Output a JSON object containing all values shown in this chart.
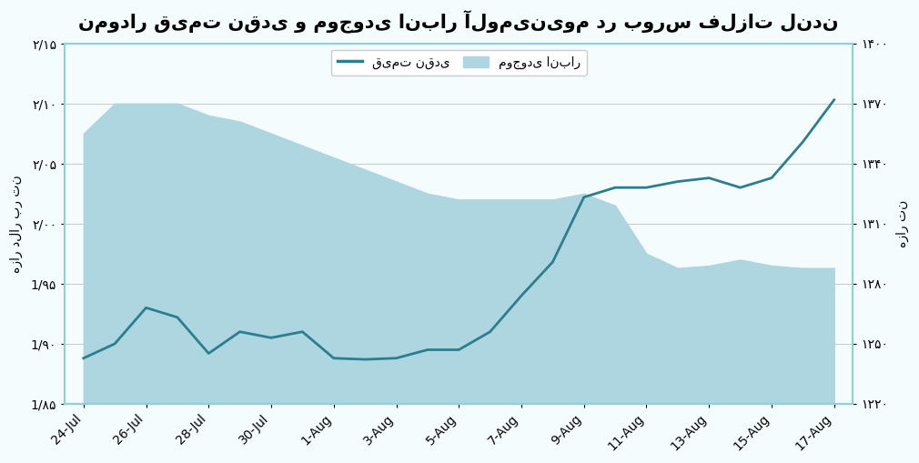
{
  "title": "نمودار قیمت نقدی و موجودی انبار آلومینیوم در بورس فلزات لندن",
  "x_labels": [
    "24-Jul",
    "26-Jul",
    "28-Jul",
    "30-Jul",
    "1-Aug",
    "3-Aug",
    "5-Aug",
    "7-Aug",
    "9-Aug",
    "11-Aug",
    "13-Aug",
    "15-Aug",
    "17-Aug"
  ],
  "price_x": [
    0,
    0.5,
    1.0,
    1.5,
    2.0,
    2.5,
    3.0,
    3.5,
    4.0,
    4.5,
    5.0,
    5.5,
    6.0,
    6.5,
    7.0,
    7.5,
    8.0,
    8.5,
    9.0,
    9.5,
    10.0,
    10.5,
    11.0,
    11.5,
    12.0
  ],
  "price_y": [
    1.888,
    1.9,
    1.93,
    1.922,
    1.892,
    1.91,
    1.905,
    1.91,
    1.888,
    1.887,
    1.888,
    1.895,
    1.895,
    1.91,
    1.94,
    1.968,
    2.022,
    2.03,
    2.03,
    2.035,
    2.038,
    2.03,
    2.038,
    2.068,
    2.103
  ],
  "inv_x": [
    0,
    0.5,
    1.0,
    1.5,
    2.0,
    2.5,
    3.0,
    3.5,
    4.0,
    4.5,
    5.0,
    5.5,
    6.0,
    6.5,
    7.0,
    7.5,
    8.0,
    8.5,
    9.0,
    9.5,
    10.0,
    10.5,
    11.0,
    11.5,
    12.0
  ],
  "inv_top": [
    2.075,
    2.1,
    2.1,
    2.1,
    2.09,
    2.085,
    2.075,
    2.065,
    2.055,
    2.045,
    2.035,
    2.025,
    2.02,
    2.02,
    2.02,
    2.02,
    2.025,
    2.015,
    1.975,
    1.963,
    1.965,
    1.97,
    1.965,
    1.963,
    1.963
  ],
  "inv_bottom": 1.85,
  "left_ylabel": "هزار دلار بر تن",
  "right_ylabel": "هزار تن",
  "left_yticks": [
    1.85,
    1.9,
    1.95,
    2.0,
    2.05,
    2.1,
    2.15
  ],
  "left_ytick_labels": [
    "1/۸۵",
    "1/۹۰",
    "1/۹۵",
    "۲/۰۰",
    "۲/۰۵",
    "۲/۱۰",
    "۲/۱۵"
  ],
  "right_yticks": [
    1220,
    1250,
    1280,
    1310,
    1340,
    1370,
    1400
  ],
  "right_ytick_labels": [
    "۱۲۲۰",
    "۱۲۵۰",
    "۱۲۸۰",
    "۱۳۱۰",
    "۱۳۴۰",
    "۱۳۷۰",
    "۱۴۰۰"
  ],
  "legend_inventory": "موجودی انبار",
  "legend_price": "قیمت نقدی",
  "fill_color": "#aed6e0",
  "line_color": "#2a7f8f",
  "bg_color": "#f5fcfd",
  "border_color": "#8ed0dc",
  "ylim_left": [
    1.85,
    2.15
  ],
  "ylim_right": [
    1220,
    1400
  ],
  "xlim": [
    -0.3,
    12.3
  ],
  "title_fontsize": 15,
  "tick_fontsize": 10,
  "legend_fontsize": 10,
  "ylabel_fontsize": 10
}
